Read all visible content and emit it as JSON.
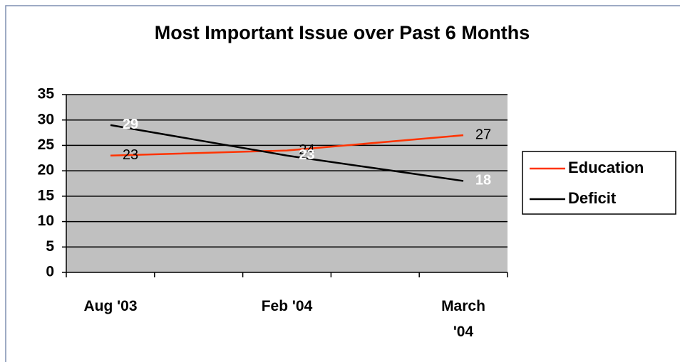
{
  "chart_data": {
    "type": "line",
    "title": "Most Important Issue over Past 6 Months",
    "categories": [
      "Aug '03",
      "Feb '04",
      "March '04"
    ],
    "series": [
      {
        "name": "Education",
        "color": "#ff3300",
        "label_color": "#000000",
        "values": [
          23,
          24,
          27
        ]
      },
      {
        "name": "Deficit",
        "color": "#000000",
        "label_color": "#ffffff",
        "values": [
          29,
          23,
          18
        ]
      }
    ],
    "ylim": [
      0,
      35
    ],
    "yticks": [
      0,
      5,
      10,
      15,
      20,
      25,
      30,
      35
    ],
    "grid": true,
    "legend": "right"
  }
}
